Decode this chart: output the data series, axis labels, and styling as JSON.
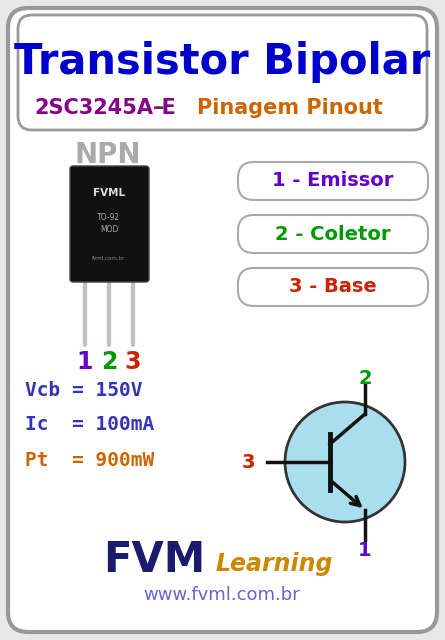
{
  "title1": "Transistor Bipolar",
  "title2_part1": "2SC3245A-E",
  "title2_part2": " - ",
  "title2_part3": "Pinagem Pinout",
  "npn_label": "NPN",
  "pin_labels": [
    "1",
    "2",
    "3"
  ],
  "pin_colors": [
    "#6600cc",
    "#009900",
    "#cc2200"
  ],
  "pin1_name": "1 - Emissor",
  "pin2_name": "2 - Coletor",
  "pin3_name": "3 - Base",
  "pin1_color": "#6600cc",
  "pin2_color": "#009900",
  "pin3_color": "#cc2200",
  "spec1": "Vcb = 150V",
  "spec2": "Ic  = 100mA",
  "spec3": "Pt  = 900mW",
  "spec1_color": "#3333bb",
  "spec2_color": "#3333bb",
  "spec3_color": "#cc6600",
  "fvm_color": "#1a1a6e",
  "learning_color": "#cc8800",
  "website": "www.fvml.com.br",
  "website_color": "#6666cc",
  "bg_color": "#e8e8e8",
  "inner_bg": "#ffffff",
  "border_color": "#999999",
  "title1_color": "#0000cc",
  "title2_color": "#880088",
  "title3_color": "#cc6600",
  "transistor_body_color": "#111111",
  "transistor_text_color": "#cccccc",
  "circle_fill": "#aadeee",
  "circle_edge": "#333333",
  "symbol_color": "#111111"
}
